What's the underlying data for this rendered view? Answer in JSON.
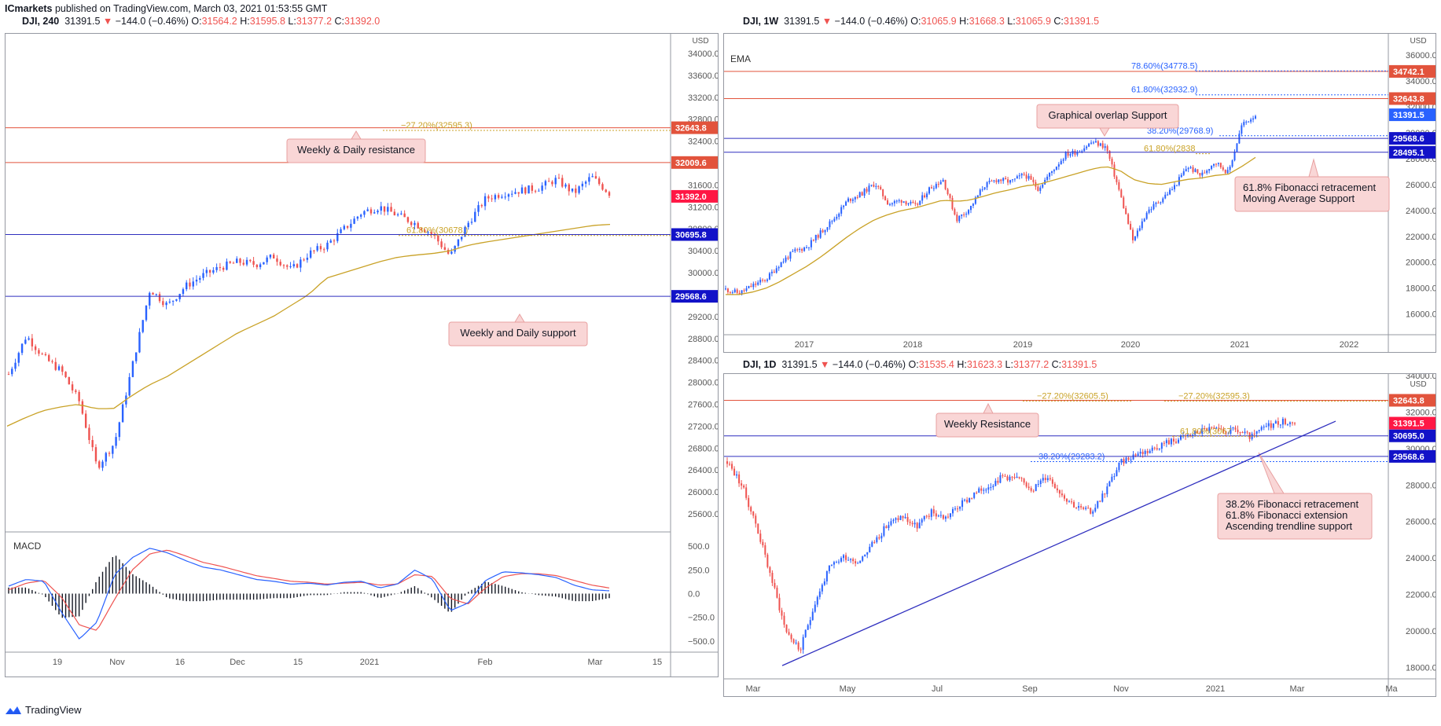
{
  "header": {
    "author": "ICmarkets",
    "published_text": "published on TradingView.com, March 03, 2021 01:53:55 GMT"
  },
  "colors": {
    "up": "#2962ff",
    "down": "#ef5350",
    "ema": "#c9a227",
    "resistance": "#e2533c",
    "support": "#2f2fbf",
    "macd": "#2962ff",
    "signal": "#ef5350",
    "annotation_bg": "#f9d6d6",
    "annotation_border": "#e8a0a0"
  },
  "panel_left": {
    "symbol": "DJI, 240",
    "last": "31391.5",
    "change": "−144.0 (−0.46%)",
    "o_label": "O:",
    "o": "31564.2",
    "h_label": "H:",
    "h": "31595.8",
    "l_label": "L:",
    "l": "31377.2",
    "c_label": "C:",
    "c": "31392.0",
    "currency": "USD",
    "indicator": "MACD",
    "chart_data": {
      "type": "candlestick",
      "x_labels": [
        "19",
        "Nov",
        "16",
        "Dec",
        "15",
        "2021",
        "Feb",
        "Mar",
        "15"
      ],
      "y_ticks": [
        "34000.0",
        "33600.0",
        "33200.0",
        "32800.0",
        "32400.0",
        "32000.0",
        "31600.0",
        "31200.0",
        "30800.0",
        "30400.0",
        "30000.0",
        "29600.0",
        "29200.0",
        "28800.0",
        "28400.0",
        "28000.0",
        "27600.0",
        "27200.0",
        "26800.0",
        "26400.0",
        "26000.0",
        "25600.0"
      ],
      "ylim": [
        25300,
        34300
      ],
      "price_series": [
        28150,
        28850,
        28450,
        28200,
        27650,
        26450,
        26900,
        28300,
        29700,
        29400,
        29750,
        29950,
        30100,
        30200,
        30150,
        30300,
        30050,
        30350,
        30500,
        30800,
        31100,
        31200,
        31050,
        30900,
        30700,
        30300,
        30900,
        31350,
        31450,
        31500,
        31550,
        31700,
        31450,
        31750,
        31450
      ],
      "ema_series": [
        27200,
        27350,
        27480,
        27550,
        27600,
        27520,
        27520,
        27750,
        27950,
        28100,
        28300,
        28500,
        28700,
        28900,
        29050,
        29200,
        29400,
        29600,
        29900,
        30000,
        30100,
        30200,
        30280,
        30320,
        30350,
        30400,
        30500,
        30560,
        30610,
        30660,
        30710,
        30760,
        30810,
        30860,
        30880
      ],
      "levels": [
        {
          "price": 32643.8,
          "label": "32643.8",
          "kind": "resistance"
        },
        {
          "price": 32009.6,
          "label": "32009.6",
          "kind": "resistance"
        },
        {
          "price": 31392.0,
          "label": "31392.0",
          "kind": "last"
        },
        {
          "price": 30695.8,
          "label": "30695.8",
          "kind": "support"
        },
        {
          "price": 29568.6,
          "label": "29568.6",
          "kind": "support"
        }
      ],
      "fib_labels": [
        {
          "price": 32595.3,
          "text": "−27.20%(32595.3)"
        },
        {
          "price": 30678.0,
          "text": "61.80%(30678.)"
        }
      ],
      "annotations": [
        "Weekly & Daily resistance",
        "Weekly and Daily support"
      ],
      "macd_ticks": [
        "500.0",
        "250.0",
        "0.0",
        "−250.0",
        "−500.0"
      ],
      "macd_ylim": [
        -560,
        560
      ],
      "macd_series": [
        80,
        150,
        130,
        -200,
        -480,
        -300,
        200,
        380,
        480,
        430,
        350,
        280,
        250,
        200,
        150,
        130,
        100,
        110,
        90,
        120,
        130,
        60,
        100,
        250,
        150,
        -180,
        -100,
        140,
        230,
        220,
        200,
        170,
        90,
        40,
        30
      ],
      "signal_series": [
        40,
        110,
        140,
        -40,
        -330,
        -390,
        -60,
        250,
        420,
        460,
        400,
        330,
        290,
        240,
        190,
        160,
        130,
        120,
        100,
        110,
        120,
        90,
        100,
        200,
        180,
        -50,
        -110,
        60,
        180,
        210,
        210,
        190,
        140,
        90,
        60
      ]
    }
  },
  "panel_weekly": {
    "symbol": "DJI, 1W",
    "last": "31391.5",
    "change": "−144.0 (−0.46%)",
    "o_label": "O:",
    "o": "31065.9",
    "h_label": "H:",
    "h": "31668.3",
    "l_label": "L:",
    "l": "31065.9",
    "c_label": "C:",
    "c": "31391.5",
    "currency": "USD",
    "indicator": "EMA",
    "chart_data": {
      "type": "candlestick",
      "x_labels": [
        "2017",
        "2018",
        "2019",
        "2020",
        "2021",
        "2022"
      ],
      "y_ticks": [
        "36000.0",
        "34000.0",
        "32000.0",
        "30000.0",
        "28000.0",
        "26000.0",
        "24000.0",
        "22000.0",
        "20000.0",
        "18000.0",
        "16000.0"
      ],
      "ylim": [
        14700,
        36800
      ],
      "price_series": [
        17900,
        17600,
        18200,
        18700,
        19900,
        20800,
        21200,
        22300,
        23400,
        24800,
        25300,
        26100,
        24500,
        24800,
        24300,
        25700,
        26400,
        23300,
        24200,
        25900,
        26400,
        26200,
        26800,
        25700,
        27000,
        28300,
        28600,
        29300,
        28900,
        25400,
        21600,
        23900,
        24800,
        25800,
        27400,
        26700,
        27800,
        26900,
        30600,
        31400
      ],
      "ema_series": [
        17500,
        17500,
        17700,
        18000,
        18500,
        19100,
        19700,
        20400,
        21200,
        22000,
        22700,
        23300,
        23700,
        24000,
        24200,
        24500,
        24800,
        24700,
        24800,
        25100,
        25400,
        25600,
        25900,
        26000,
        26300,
        26600,
        26900,
        27200,
        27400,
        27100,
        26400,
        26100,
        26000,
        26200,
        26400,
        26500,
        26700,
        26800,
        27400,
        28100
      ],
      "levels": [
        {
          "price": 34742.1,
          "label": "34742.1",
          "kind": "resistance"
        },
        {
          "price": 32643.8,
          "label": "32643.8",
          "kind": "resistance"
        },
        {
          "price": 31391.5,
          "label": "31391.5",
          "kind": "last-blue"
        },
        {
          "price": 29568.6,
          "label": "29568.6",
          "kind": "support"
        },
        {
          "price": 28495.1,
          "label": "28495.1",
          "kind": "support"
        }
      ],
      "fib_labels": [
        {
          "price": 34778.5,
          "text": "78.60%(34778.5)"
        },
        {
          "price": 32932.9,
          "text": "61.80%(32932.9)"
        },
        {
          "price": 29768.9,
          "text": "38.20%(29768.9)"
        },
        {
          "price": 28380.0,
          "text": "61.80%(2838"
        }
      ],
      "annotations": [
        "Graphical overlap Support",
        "61.8% Fibonacci retracement",
        "Moving Average Support"
      ]
    }
  },
  "panel_daily": {
    "symbol": "DJI, 1D",
    "last": "31391.5",
    "change": "−144.0 (−0.46%)",
    "o_label": "O:",
    "o": "31535.4",
    "h_label": "H:",
    "h": "31623.3",
    "l_label": "L:",
    "l": "31377.2",
    "c_label": "C:",
    "c": "31391.5",
    "currency": "USD",
    "chart_data": {
      "type": "candlestick",
      "x_labels": [
        "Mar",
        "May",
        "Jul",
        "Sep",
        "Nov",
        "2021",
        "Mar",
        "Ma"
      ],
      "y_ticks": [
        "34000.0",
        "32000.0",
        "30000.0",
        "28000.0",
        "26000.0",
        "24000.0",
        "22000.0",
        "20000.0",
        "18000.0"
      ],
      "ylim": [
        17200,
        34000
      ],
      "price_series": [
        29300,
        28000,
        25800,
        23000,
        20100,
        18900,
        21500,
        23400,
        24100,
        23800,
        24800,
        25800,
        26300,
        25700,
        26500,
        26200,
        26900,
        27500,
        28000,
        28500,
        28300,
        27800,
        28500,
        27500,
        26800,
        26500,
        27700,
        29200,
        29700,
        29900,
        30300,
        30500,
        30800,
        31100,
        30900,
        31000,
        30600,
        31200,
        31500,
        31400
      ],
      "levels": [
        {
          "price": 32643.8,
          "label": "32643.8",
          "kind": "resistance"
        },
        {
          "price": 31391.5,
          "label": "31391.5",
          "kind": "last"
        },
        {
          "price": 30695.0,
          "label": "30695.0",
          "kind": "support"
        },
        {
          "price": 29568.6,
          "label": "29568.6",
          "kind": "support"
        }
      ],
      "fib_labels": [
        {
          "price": 32605.5,
          "text": "−27.20%(32605.5)"
        },
        {
          "price": 32595.3,
          "text": "−27.20%(32595.3)"
        },
        {
          "price": 30670.0,
          "text": "61.80%(3067"
        },
        {
          "price": 29283.2,
          "text": "38.20%(29283.2)"
        }
      ],
      "annotations": [
        "Weekly Resistance",
        "38.2% Fibonacci retracement",
        "61.8% Fibonacci extension",
        "Ascending trendline support"
      ]
    }
  },
  "footer": {
    "brand": "TradingView",
    "logo_icon": "tradingview-logo-icon"
  }
}
